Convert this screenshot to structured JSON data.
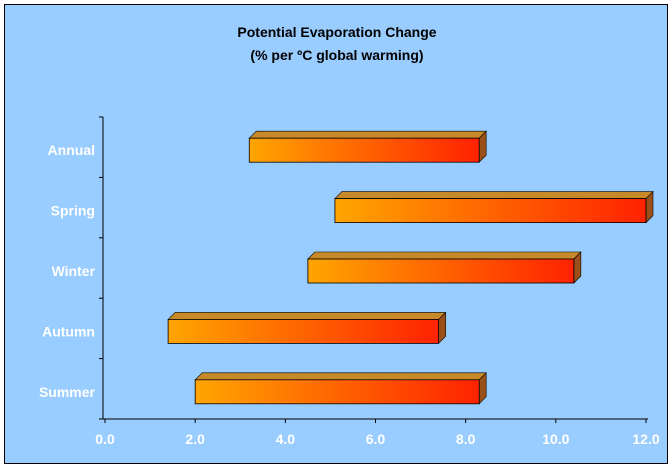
{
  "chart_data": {
    "type": "bar",
    "orientation": "horizontal",
    "style": "floating-range-3d",
    "title": "Potential Evaporation Change",
    "subtitle": "(% per ºC global warming)",
    "categories": [
      "Annual",
      "Spring",
      "Winter",
      "Autumn",
      "Summer"
    ],
    "ranges": [
      {
        "category": "Annual",
        "low": 3.2,
        "high": 8.3
      },
      {
        "category": "Spring",
        "low": 5.1,
        "high": 12.0
      },
      {
        "category": "Winter",
        "low": 4.5,
        "high": 10.4
      },
      {
        "category": "Autumn",
        "low": 1.4,
        "high": 7.4
      },
      {
        "category": "Summer",
        "low": 2.0,
        "high": 8.3
      }
    ],
    "xlim": [
      0,
      12
    ],
    "xticks": [
      "0.0",
      "2.0",
      "4.0",
      "6.0",
      "8.0",
      "10.0",
      "12.0"
    ],
    "xlabel": "",
    "ylabel": "",
    "grid": false,
    "legend": "none",
    "colors": {
      "background": "#99ccff",
      "bar_start": "#ffa500",
      "bar_end": "#ff2200",
      "bar_top": "#c88a28",
      "bar_side": "#9a5018",
      "axis": "#000000",
      "label": "#ffffff",
      "title": "#000000"
    }
  }
}
